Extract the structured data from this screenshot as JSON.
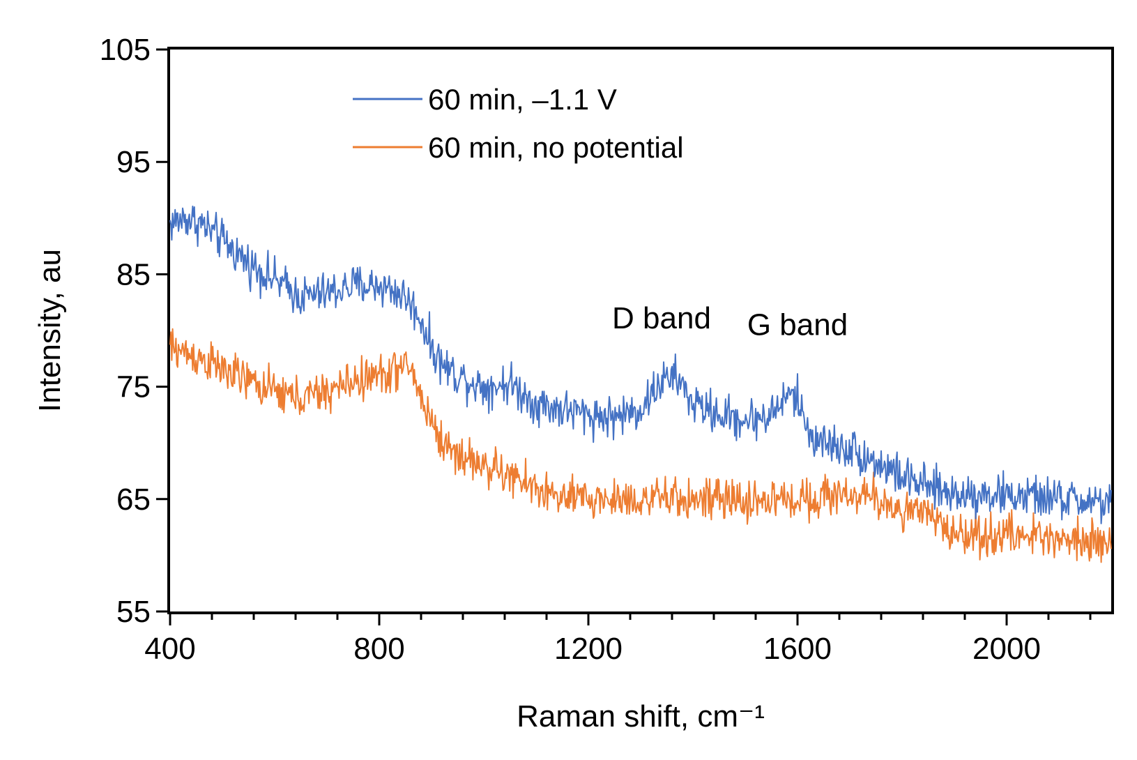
{
  "chart_data": {
    "type": "line",
    "title": "",
    "xlabel": "Raman shift, cm⁻¹",
    "ylabel": "Intensity, au",
    "xlim": [
      400,
      2200
    ],
    "ylim": [
      55,
      105
    ],
    "x_ticks": [
      400,
      800,
      1200,
      1600,
      2000
    ],
    "x_tick_labels": [
      "400",
      "800",
      "1200",
      "1600",
      "2000"
    ],
    "x_minor_step": 80,
    "y_ticks": [
      55,
      65,
      75,
      85,
      95,
      105
    ],
    "y_tick_labels": [
      "55",
      "65",
      "75",
      "85",
      "95",
      "105"
    ],
    "grid": false,
    "legend_position": "top-left",
    "annotations": [
      {
        "text": "D band",
        "x": 1340,
        "y": 80.2
      },
      {
        "text": "G band",
        "x": 1600,
        "y": 79.6
      }
    ],
    "series": [
      {
        "name": "60 min, –1.1 V",
        "color": "#4472C4",
        "noise": 1.3,
        "x": [
          400,
          430,
          460,
          500,
          550,
          600,
          650,
          700,
          750,
          800,
          830,
          850,
          880,
          900,
          920,
          950,
          1000,
          1050,
          1100,
          1150,
          1200,
          1250,
          1300,
          1340,
          1370,
          1400,
          1450,
          1500,
          1550,
          1580,
          1600,
          1620,
          1650,
          1700,
          1750,
          1800,
          1850,
          1900,
          1950,
          2000,
          2050,
          2100,
          2150,
          2200
        ],
        "y": [
          89.5,
          90.0,
          89.5,
          88.0,
          86.0,
          84.5,
          83.0,
          83.3,
          84.0,
          84.0,
          83.5,
          83.0,
          81.0,
          78.5,
          77.0,
          76.0,
          75.0,
          75.3,
          73.5,
          73.0,
          72.5,
          72.3,
          73.0,
          75.5,
          75.8,
          73.5,
          72.5,
          72.0,
          72.5,
          74.2,
          74.0,
          71.0,
          70.0,
          69.5,
          68.3,
          67.0,
          66.0,
          65.5,
          65.5,
          65.3,
          65.2,
          65.0,
          64.8,
          64.6
        ]
      },
      {
        "name": "60 min, no potential",
        "color": "#ED7D31",
        "noise": 1.3,
        "x": [
          400,
          430,
          460,
          500,
          550,
          600,
          650,
          700,
          750,
          800,
          830,
          860,
          880,
          900,
          920,
          950,
          1000,
          1050,
          1100,
          1150,
          1200,
          1300,
          1400,
          1500,
          1600,
          1700,
          1750,
          1800,
          1850,
          1880,
          1920,
          2000,
          2100,
          2200
        ],
        "y": [
          78.5,
          78.0,
          77.5,
          76.5,
          75.5,
          74.5,
          74.0,
          74.5,
          75.5,
          76.0,
          76.5,
          76.8,
          74.0,
          72.0,
          70.0,
          69.0,
          68.0,
          67.0,
          66.0,
          65.0,
          65.0,
          65.0,
          65.0,
          64.8,
          65.0,
          65.5,
          65.0,
          64.0,
          63.5,
          62.5,
          61.8,
          61.8,
          61.6,
          61.4
        ]
      }
    ]
  }
}
